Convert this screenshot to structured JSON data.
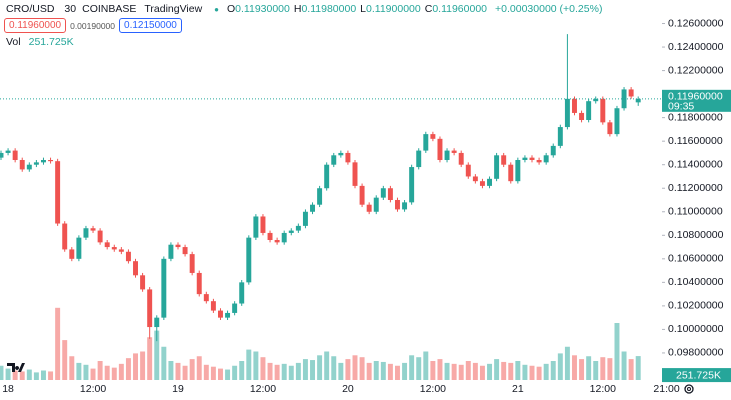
{
  "chart_data": {
    "type": "candlestick",
    "symbol": "CRO/USD",
    "interval": "30",
    "exchange": "COINBASE",
    "source": "TradingView",
    "ohlc_legend": [
      {
        "key": "O",
        "text": "0.11930000"
      },
      {
        "key": "H",
        "text": "0.11980000"
      },
      {
        "key": "L",
        "text": "0.11900000"
      },
      {
        "key": "C",
        "text": "0.11960000"
      }
    ],
    "change": "+0.00030000 (+0.25%)",
    "bid": "0.11960000",
    "spread": "0.00190000",
    "ask": "0.12150000",
    "volume_title": "Vol",
    "volume_text": "251.725K",
    "last_price_text": "0.11960000",
    "countdown": "09:35",
    "up_color": "#26a69a",
    "down_color": "#ef5350",
    "xlim": [
      -0.14,
      93.36
    ],
    "xticks": [
      {
        "value": 1,
        "label": "18"
      },
      {
        "value": 13,
        "label": "12:00"
      },
      {
        "value": 25,
        "label": "19"
      },
      {
        "value": 37,
        "label": "12:00"
      },
      {
        "value": 49,
        "label": "20"
      },
      {
        "value": 61,
        "label": "12:00"
      },
      {
        "value": 73,
        "label": "21"
      },
      {
        "value": 85,
        "label": "12:00"
      },
      {
        "value": 94,
        "label": "21:00"
      }
    ],
    "ylim": [
      0.0957,
      0.128
    ],
    "yticks": [
      {
        "value": 0.098,
        "label": "0.09800000"
      },
      {
        "value": 0.1,
        "label": "0.10000000"
      },
      {
        "value": 0.102,
        "label": "0.10200000"
      },
      {
        "value": 0.104,
        "label": "0.10400000"
      },
      {
        "value": 0.106,
        "label": "0.10600000"
      },
      {
        "value": 0.108,
        "label": "0.10800000"
      },
      {
        "value": 0.11,
        "label": "0.11000000"
      },
      {
        "value": 0.112,
        "label": "0.11200000"
      },
      {
        "value": 0.114,
        "label": "0.11400000"
      },
      {
        "value": 0.116,
        "label": "0.11600000"
      },
      {
        "value": 0.118,
        "label": "0.11800000"
      },
      {
        "value": 0.12,
        "label": "0.12000000"
      },
      {
        "value": 0.122,
        "label": "0.12200000"
      },
      {
        "value": 0.124,
        "label": "0.12400000"
      },
      {
        "value": 0.126,
        "label": "0.12600000"
      }
    ],
    "volume_ylim": [
      0,
      4000000
    ],
    "open": [
      0.1146,
      0.115,
      0.1152,
      0.1144,
      0.1136,
      0.114,
      0.1142,
      0.1144,
      0.1143,
      0.109,
      0.1068,
      0.106,
      0.1078,
      0.1086,
      0.1084,
      0.1074,
      0.107,
      0.1068,
      0.1066,
      0.1058,
      0.1046,
      0.1034,
      0.1002,
      0.101,
      0.106,
      0.1072,
      0.107,
      0.1064,
      0.1048,
      0.103,
      0.1024,
      0.1016,
      0.101,
      0.1014,
      0.1022,
      0.104,
      0.1078,
      0.1096,
      0.1082,
      0.1076,
      0.1074,
      0.1082,
      0.1084,
      0.1088,
      0.11,
      0.1106,
      0.112,
      0.114,
      0.1148,
      0.115,
      0.1142,
      0.1122,
      0.1106,
      0.11,
      0.1112,
      0.112,
      0.111,
      0.1102,
      0.1108,
      0.1138,
      0.1152,
      0.1166,
      0.1162,
      0.1144,
      0.1152,
      0.115,
      0.114,
      0.113,
      0.1126,
      0.1122,
      0.1128,
      0.1148,
      0.114,
      0.1126,
      0.1144,
      0.1146,
      0.1144,
      0.1142,
      0.1148,
      0.1156,
      0.1172,
      0.1196,
      0.1184,
      0.1178,
      0.1194,
      0.1196,
      0.1176,
      0.1166,
      0.1188,
      0.1204,
      0.1193
    ],
    "high": [
      0.1152,
      0.1154,
      0.1154,
      0.1146,
      0.1142,
      0.1144,
      0.1146,
      0.1146,
      0.1145,
      0.1092,
      0.107,
      0.108,
      0.1088,
      0.1088,
      0.1086,
      0.1076,
      0.1072,
      0.107,
      0.1068,
      0.106,
      0.1048,
      0.1036,
      0.1012,
      0.1062,
      0.1074,
      0.1074,
      0.1072,
      0.1066,
      0.105,
      0.1032,
      0.1026,
      0.1018,
      0.1016,
      0.1024,
      0.1042,
      0.108,
      0.1098,
      0.1098,
      0.1084,
      0.1078,
      0.1084,
      0.1086,
      0.109,
      0.1102,
      0.1108,
      0.1122,
      0.1142,
      0.115,
      0.1152,
      0.1152,
      0.1144,
      0.1124,
      0.1108,
      0.1114,
      0.1122,
      0.1122,
      0.1112,
      0.111,
      0.114,
      0.1154,
      0.1168,
      0.1168,
      0.1164,
      0.1154,
      0.1154,
      0.1152,
      0.1142,
      0.1132,
      0.1128,
      0.113,
      0.115,
      0.115,
      0.1142,
      0.1146,
      0.1148,
      0.1148,
      0.1146,
      0.115,
      0.1158,
      0.1174,
      0.1251,
      0.1198,
      0.1186,
      0.1196,
      0.1198,
      0.1198,
      0.1178,
      0.119,
      0.1206,
      0.1206,
      0.1198
    ],
    "low": [
      0.1144,
      0.1148,
      0.1142,
      0.1134,
      0.1134,
      0.1138,
      0.114,
      0.1141,
      0.1088,
      0.1066,
      0.1058,
      0.1058,
      0.1076,
      0.1082,
      0.1072,
      0.1068,
      0.1066,
      0.1064,
      0.1056,
      0.1044,
      0.1032,
      0.0992,
      0.099,
      0.1008,
      0.1058,
      0.1068,
      0.1062,
      0.1046,
      0.1028,
      0.1022,
      0.1014,
      0.1008,
      0.1008,
      0.1012,
      0.102,
      0.1038,
      0.1076,
      0.108,
      0.1074,
      0.1072,
      0.1072,
      0.108,
      0.1082,
      0.1086,
      0.1098,
      0.1104,
      0.1118,
      0.1138,
      0.1146,
      0.114,
      0.112,
      0.1104,
      0.1098,
      0.1098,
      0.111,
      0.1108,
      0.11,
      0.11,
      0.1106,
      0.1136,
      0.115,
      0.116,
      0.1142,
      0.1142,
      0.1148,
      0.1138,
      0.1128,
      0.1124,
      0.112,
      0.112,
      0.1126,
      0.1138,
      0.1124,
      0.1124,
      0.1142,
      0.1142,
      0.114,
      0.114,
      0.1146,
      0.1154,
      0.117,
      0.1182,
      0.1176,
      0.1176,
      0.1192,
      0.1174,
      0.1164,
      0.1164,
      0.1186,
      0.1196,
      0.119
    ],
    "close": [
      0.115,
      0.1152,
      0.1144,
      0.1136,
      0.114,
      0.1142,
      0.1144,
      0.1143,
      0.109,
      0.1068,
      0.106,
      0.1078,
      0.1086,
      0.1084,
      0.1074,
      0.107,
      0.1068,
      0.1066,
      0.1058,
      0.1046,
      0.1034,
      0.1002,
      0.101,
      0.106,
      0.1072,
      0.107,
      0.1064,
      0.1048,
      0.103,
      0.1024,
      0.1016,
      0.101,
      0.1014,
      0.1022,
      0.104,
      0.1078,
      0.1096,
      0.1082,
      0.1076,
      0.1074,
      0.1082,
      0.1084,
      0.1088,
      0.11,
      0.1106,
      0.112,
      0.114,
      0.1148,
      0.115,
      0.1142,
      0.1122,
      0.1106,
      0.11,
      0.1112,
      0.112,
      0.111,
      0.1102,
      0.1108,
      0.1138,
      0.1152,
      0.1166,
      0.1162,
      0.1144,
      0.1152,
      0.115,
      0.114,
      0.113,
      0.1126,
      0.1122,
      0.1128,
      0.1148,
      0.114,
      0.1126,
      0.1144,
      0.1146,
      0.1144,
      0.1142,
      0.1148,
      0.1156,
      0.1172,
      0.1196,
      0.1184,
      0.1178,
      0.1194,
      0.1196,
      0.1176,
      0.1166,
      0.1188,
      0.1204,
      0.1198,
      0.1196
    ],
    "volume": [
      150000,
      120000,
      100000,
      90000,
      110000,
      80000,
      100000,
      90000,
      760000,
      420000,
      250000,
      180000,
      160000,
      120000,
      200000,
      150000,
      130000,
      170000,
      230000,
      280000,
      300000,
      450000,
      520000,
      350000,
      200000,
      180000,
      150000,
      220000,
      250000,
      160000,
      140000,
      120000,
      110000,
      150000,
      200000,
      320000,
      300000,
      240000,
      180000,
      160000,
      170000,
      150000,
      180000,
      220000,
      210000,
      260000,
      300000,
      250000,
      180000,
      220000,
      260000,
      240000,
      180000,
      200000,
      190000,
      170000,
      150000,
      180000,
      260000,
      240000,
      300000,
      200000,
      220000,
      180000,
      170000,
      160000,
      200000,
      180000,
      150000,
      170000,
      220000,
      190000,
      180000,
      200000,
      160000,
      150000,
      140000,
      170000,
      200000,
      280000,
      350000,
      260000,
      220000,
      250000,
      200000,
      240000,
      230000,
      600000,
      300000,
      220000,
      251725
    ]
  }
}
